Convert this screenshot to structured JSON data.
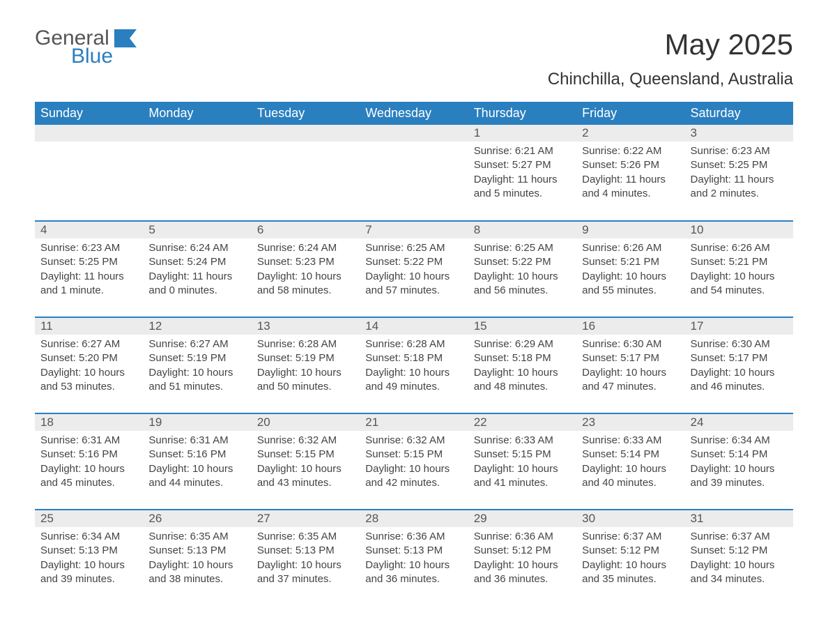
{
  "brand": {
    "general": "General",
    "blue": "Blue",
    "icon_color": "#2a7fbf"
  },
  "title": "May 2025",
  "location": "Chinchilla, Queensland, Australia",
  "colors": {
    "header_bg": "#2a7fbf",
    "header_text": "#ffffff",
    "daynum_bg": "#ececec",
    "daynum_text": "#555555",
    "body_text": "#444444",
    "border": "#2a7fbf",
    "page_bg": "#ffffff"
  },
  "day_headers": [
    "Sunday",
    "Monday",
    "Tuesday",
    "Wednesday",
    "Thursday",
    "Friday",
    "Saturday"
  ],
  "weeks": [
    [
      {
        "day": "",
        "sunrise": "",
        "sunset": "",
        "daylight": ""
      },
      {
        "day": "",
        "sunrise": "",
        "sunset": "",
        "daylight": ""
      },
      {
        "day": "",
        "sunrise": "",
        "sunset": "",
        "daylight": ""
      },
      {
        "day": "",
        "sunrise": "",
        "sunset": "",
        "daylight": ""
      },
      {
        "day": "1",
        "sunrise": "Sunrise: 6:21 AM",
        "sunset": "Sunset: 5:27 PM",
        "daylight": "Daylight: 11 hours and 5 minutes."
      },
      {
        "day": "2",
        "sunrise": "Sunrise: 6:22 AM",
        "sunset": "Sunset: 5:26 PM",
        "daylight": "Daylight: 11 hours and 4 minutes."
      },
      {
        "day": "3",
        "sunrise": "Sunrise: 6:23 AM",
        "sunset": "Sunset: 5:25 PM",
        "daylight": "Daylight: 11 hours and 2 minutes."
      }
    ],
    [
      {
        "day": "4",
        "sunrise": "Sunrise: 6:23 AM",
        "sunset": "Sunset: 5:25 PM",
        "daylight": "Daylight: 11 hours and 1 minute."
      },
      {
        "day": "5",
        "sunrise": "Sunrise: 6:24 AM",
        "sunset": "Sunset: 5:24 PM",
        "daylight": "Daylight: 11 hours and 0 minutes."
      },
      {
        "day": "6",
        "sunrise": "Sunrise: 6:24 AM",
        "sunset": "Sunset: 5:23 PM",
        "daylight": "Daylight: 10 hours and 58 minutes."
      },
      {
        "day": "7",
        "sunrise": "Sunrise: 6:25 AM",
        "sunset": "Sunset: 5:22 PM",
        "daylight": "Daylight: 10 hours and 57 minutes."
      },
      {
        "day": "8",
        "sunrise": "Sunrise: 6:25 AM",
        "sunset": "Sunset: 5:22 PM",
        "daylight": "Daylight: 10 hours and 56 minutes."
      },
      {
        "day": "9",
        "sunrise": "Sunrise: 6:26 AM",
        "sunset": "Sunset: 5:21 PM",
        "daylight": "Daylight: 10 hours and 55 minutes."
      },
      {
        "day": "10",
        "sunrise": "Sunrise: 6:26 AM",
        "sunset": "Sunset: 5:21 PM",
        "daylight": "Daylight: 10 hours and 54 minutes."
      }
    ],
    [
      {
        "day": "11",
        "sunrise": "Sunrise: 6:27 AM",
        "sunset": "Sunset: 5:20 PM",
        "daylight": "Daylight: 10 hours and 53 minutes."
      },
      {
        "day": "12",
        "sunrise": "Sunrise: 6:27 AM",
        "sunset": "Sunset: 5:19 PM",
        "daylight": "Daylight: 10 hours and 51 minutes."
      },
      {
        "day": "13",
        "sunrise": "Sunrise: 6:28 AM",
        "sunset": "Sunset: 5:19 PM",
        "daylight": "Daylight: 10 hours and 50 minutes."
      },
      {
        "day": "14",
        "sunrise": "Sunrise: 6:28 AM",
        "sunset": "Sunset: 5:18 PM",
        "daylight": "Daylight: 10 hours and 49 minutes."
      },
      {
        "day": "15",
        "sunrise": "Sunrise: 6:29 AM",
        "sunset": "Sunset: 5:18 PM",
        "daylight": "Daylight: 10 hours and 48 minutes."
      },
      {
        "day": "16",
        "sunrise": "Sunrise: 6:30 AM",
        "sunset": "Sunset: 5:17 PM",
        "daylight": "Daylight: 10 hours and 47 minutes."
      },
      {
        "day": "17",
        "sunrise": "Sunrise: 6:30 AM",
        "sunset": "Sunset: 5:17 PM",
        "daylight": "Daylight: 10 hours and 46 minutes."
      }
    ],
    [
      {
        "day": "18",
        "sunrise": "Sunrise: 6:31 AM",
        "sunset": "Sunset: 5:16 PM",
        "daylight": "Daylight: 10 hours and 45 minutes."
      },
      {
        "day": "19",
        "sunrise": "Sunrise: 6:31 AM",
        "sunset": "Sunset: 5:16 PM",
        "daylight": "Daylight: 10 hours and 44 minutes."
      },
      {
        "day": "20",
        "sunrise": "Sunrise: 6:32 AM",
        "sunset": "Sunset: 5:15 PM",
        "daylight": "Daylight: 10 hours and 43 minutes."
      },
      {
        "day": "21",
        "sunrise": "Sunrise: 6:32 AM",
        "sunset": "Sunset: 5:15 PM",
        "daylight": "Daylight: 10 hours and 42 minutes."
      },
      {
        "day": "22",
        "sunrise": "Sunrise: 6:33 AM",
        "sunset": "Sunset: 5:15 PM",
        "daylight": "Daylight: 10 hours and 41 minutes."
      },
      {
        "day": "23",
        "sunrise": "Sunrise: 6:33 AM",
        "sunset": "Sunset: 5:14 PM",
        "daylight": "Daylight: 10 hours and 40 minutes."
      },
      {
        "day": "24",
        "sunrise": "Sunrise: 6:34 AM",
        "sunset": "Sunset: 5:14 PM",
        "daylight": "Daylight: 10 hours and 39 minutes."
      }
    ],
    [
      {
        "day": "25",
        "sunrise": "Sunrise: 6:34 AM",
        "sunset": "Sunset: 5:13 PM",
        "daylight": "Daylight: 10 hours and 39 minutes."
      },
      {
        "day": "26",
        "sunrise": "Sunrise: 6:35 AM",
        "sunset": "Sunset: 5:13 PM",
        "daylight": "Daylight: 10 hours and 38 minutes."
      },
      {
        "day": "27",
        "sunrise": "Sunrise: 6:35 AM",
        "sunset": "Sunset: 5:13 PM",
        "daylight": "Daylight: 10 hours and 37 minutes."
      },
      {
        "day": "28",
        "sunrise": "Sunrise: 6:36 AM",
        "sunset": "Sunset: 5:13 PM",
        "daylight": "Daylight: 10 hours and 36 minutes."
      },
      {
        "day": "29",
        "sunrise": "Sunrise: 6:36 AM",
        "sunset": "Sunset: 5:12 PM",
        "daylight": "Daylight: 10 hours and 36 minutes."
      },
      {
        "day": "30",
        "sunrise": "Sunrise: 6:37 AM",
        "sunset": "Sunset: 5:12 PM",
        "daylight": "Daylight: 10 hours and 35 minutes."
      },
      {
        "day": "31",
        "sunrise": "Sunrise: 6:37 AM",
        "sunset": "Sunset: 5:12 PM",
        "daylight": "Daylight: 10 hours and 34 minutes."
      }
    ]
  ]
}
